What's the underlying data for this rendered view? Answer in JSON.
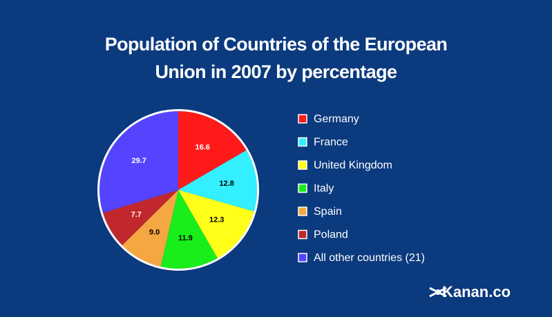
{
  "chart_data": {
    "type": "pie",
    "title": "Population of Countries of the European\nUnion in 2007 by percentage",
    "categories": [
      "Germany",
      "France",
      "United Kingdom",
      "Italy",
      "Spain",
      "Poland",
      "All other countries (21)"
    ],
    "values": [
      16.6,
      12.8,
      12.3,
      11.9,
      9.0,
      7.7,
      29.7
    ],
    "value_labels": [
      "16.6",
      "12.8",
      "12.3",
      "11.9",
      "9.0",
      "7.7",
      "29.7"
    ],
    "colors": [
      "#ff1a1a",
      "#33efff",
      "#ffff1a",
      "#1aee1a",
      "#f5a742",
      "#c0282e",
      "#5544ff"
    ],
    "legend": "right"
  },
  "brand": "Kanan.co"
}
